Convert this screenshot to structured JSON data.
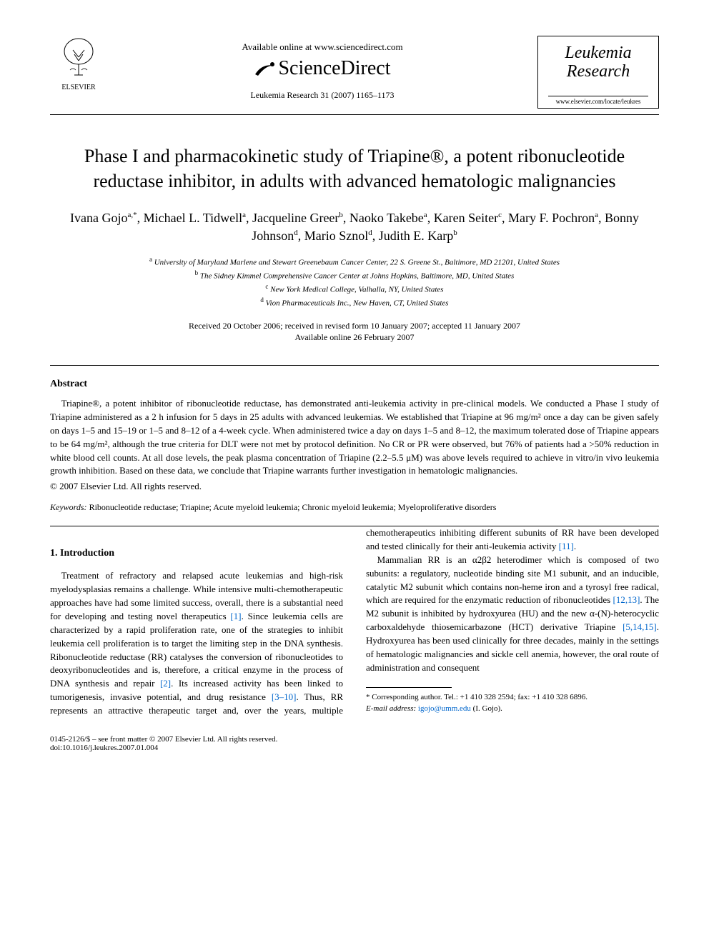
{
  "header": {
    "publisher_name": "ELSEVIER",
    "available_text": "Available online at www.sciencedirect.com",
    "sd_name": "ScienceDirect",
    "journal_ref": "Leukemia Research 31 (2007) 1165–1173",
    "journal_box_line1": "Leukemia",
    "journal_box_line2": "Research",
    "journal_url": "www.elsevier.com/locate/leukres"
  },
  "title": "Phase I and pharmacokinetic study of Triapine®, a potent ribonucleotide reductase inhibitor, in adults with advanced hematologic malignancies",
  "authors_html": "Ivana Gojo<sup>a,*</sup>, Michael L. Tidwell<sup>a</sup>, Jacqueline Greer<sup>b</sup>, Naoko Takebe<sup>a</sup>, Karen Seiter<sup>c</sup>, Mary F. Pochron<sup>a</sup>, Bonny Johnson<sup>d</sup>, Mario Sznol<sup>d</sup>, Judith E. Karp<sup>b</sup>",
  "affiliations": [
    {
      "sup": "a",
      "text": "University of Maryland Marlene and Stewart Greenebaum Cancer Center, 22 S. Greene St., Baltimore, MD 21201, United States"
    },
    {
      "sup": "b",
      "text": "The Sidney Kimmel Comprehensive Cancer Center at Johns Hopkins, Baltimore, MD, United States"
    },
    {
      "sup": "c",
      "text": "New York Medical College, Valhalla, NY, United States"
    },
    {
      "sup": "d",
      "text": "Vion Pharmaceuticals Inc., New Haven, CT, United States"
    }
  ],
  "dates": {
    "received": "Received 20 October 2006; received in revised form 10 January 2007; accepted 11 January 2007",
    "online": "Available online 26 February 2007"
  },
  "abstract": {
    "heading": "Abstract",
    "text": "Triapine®, a potent inhibitor of ribonucleotide reductase, has demonstrated anti-leukemia activity in pre-clinical models. We conducted a Phase I study of Triapine administered as a 2 h infusion for 5 days in 25 adults with advanced leukemias. We established that Triapine at 96 mg/m² once a day can be given safely on days 1–5 and 15–19 or 1–5 and 8–12 of a 4-week cycle. When administered twice a day on days 1–5 and 8–12, the maximum tolerated dose of Triapine appears to be 64 mg/m², although the true criteria for DLT were not met by protocol definition. No CR or PR were observed, but 76% of patients had a >50% reduction in white blood cell counts. At all dose levels, the peak plasma concentration of Triapine (2.2–5.5 μM) was above levels required to achieve in vitro/in vivo leukemia growth inhibition. Based on these data, we conclude that Triapine warrants further investigation in hematologic malignancies.",
    "copyright": "© 2007 Elsevier Ltd. All rights reserved."
  },
  "keywords": {
    "label": "Keywords:",
    "text": "Ribonucleotide reductase; Triapine; Acute myeloid leukemia; Chronic myeloid leukemia; Myeloproliferative disorders"
  },
  "section1": {
    "heading": "1. Introduction",
    "p1_pre": "Treatment of refractory and relapsed acute leukemias and high-risk myelodysplasias remains a challenge. While intensive multi-chemotherapeutic approaches have had some limited success, overall, there is a substantial need for developing and testing novel therapeutics ",
    "cite1": "[1]",
    "p1_mid": ". Since leukemia cells are characterized by a rapid proliferation rate, one of the strategies to inhibit leukemia cell proliferation is to target the limiting step in the DNA synthesis. Ribonucleotide reductase (RR) catalyses the conversion of ribonucleotides to deoxyribonucleotides and is, therefore, a critical enzyme in the process of DNA synthesis and repair ",
    "cite2": "[2]",
    "p1_post": ". Its increased activity",
    "p2_pre": "has been linked to tumorigenesis, invasive potential, and drug resistance ",
    "cite3": "[3–10]",
    "p2_mid": ". Thus, RR represents an attractive therapeutic target and, over the years, multiple chemotherapeutics inhibiting different subunits of RR have been developed and tested clinically for their anti-leukemia activity ",
    "cite4": "[11]",
    "p2_post": ".",
    "p3_pre": "Mammalian RR is an α2β2 heterodimer which is composed of two subunits: a regulatory, nucleotide binding site M1 subunit, and an inducible, catalytic M2 subunit which contains non-heme iron and a tyrosyl free radical, which are required for the enzymatic reduction of ribonucleotides ",
    "cite5": "[12,13]",
    "p3_mid1": ". The M2 subunit is inhibited by hydroxyurea (HU) and the new α-(N)-heterocyclic carboxaldehyde thiosemicarbazone (HCT) derivative Triapine ",
    "cite6": "[5,14,15]",
    "p3_post": ". Hydroxyurea has been used clinically for three decades, mainly in the settings of hematologic malignancies and sickle cell anemia, however, the oral route of administration and consequent"
  },
  "footnotes": {
    "corr": "* Corresponding author. Tel.: +1 410 328 2594; fax: +1 410 328 6896.",
    "email_label": "E-mail address:",
    "email": "igojo@umm.edu",
    "email_who": "(I. Gojo)."
  },
  "footer": {
    "issn": "0145-2126/$ – see front matter © 2007 Elsevier Ltd. All rights reserved.",
    "doi": "doi:10.1016/j.leukres.2007.01.004"
  },
  "colors": {
    "link": "#0066cc",
    "text": "#000000",
    "bg": "#ffffff"
  }
}
